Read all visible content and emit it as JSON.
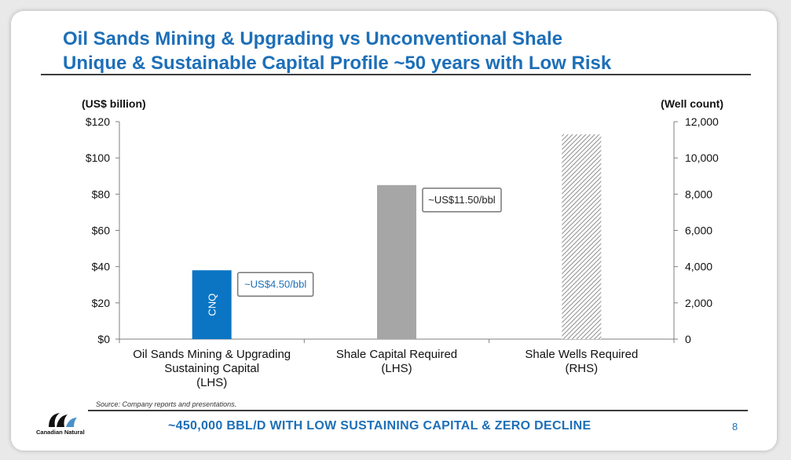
{
  "slide": {
    "title_line1": "Oil Sands Mining & Upgrading vs Unconventional Shale",
    "title_line2": "Unique & Sustainable Capital Profile ~50 years with Low Risk",
    "source": "Source: Company reports and presentations.",
    "footer": "~450,000 BBL/D WITH LOW SUSTAINING CAPITAL & ZERO DECLINE",
    "page_number": "8",
    "logo_text": "Canadian Natural"
  },
  "colors": {
    "title": "#1d6fb8",
    "cnq_bar": "#0b75c4",
    "shale_capital_bar": "#a6a6a6",
    "wells_hatch": "#8c8c8c",
    "callout_text_cnq": "#1d6fb8",
    "callout_text_shale": "#222222"
  },
  "chart_data": {
    "type": "bar",
    "left_axis": {
      "label": "(US$ billion)",
      "ylim": [
        0,
        120
      ],
      "ticks": [
        0,
        20,
        40,
        60,
        80,
        100,
        120
      ],
      "tick_labels": [
        "$0",
        "$20",
        "$40",
        "$60",
        "$80",
        "$100",
        "$120"
      ]
    },
    "right_axis": {
      "label": "(Well count)",
      "ylim": [
        0,
        12000
      ],
      "ticks": [
        0,
        2000,
        4000,
        6000,
        8000,
        10000,
        12000
      ],
      "tick_labels": [
        "0",
        "2,000",
        "4,000",
        "6,000",
        "8,000",
        "10,000",
        "12,000"
      ]
    },
    "categories": [
      [
        "Oil Sands Mining & Upgrading",
        "Sustaining Capital",
        "(LHS)"
      ],
      [
        "Shale Capital Required",
        "(LHS)"
      ],
      [
        "Shale Wells Required",
        "(RHS)"
      ]
    ],
    "bars": [
      {
        "category_index": 0,
        "axis": "left",
        "value": 38,
        "label": "CNQ",
        "callout": "~US$4.50/bbl",
        "style": "solid-blue"
      },
      {
        "category_index": 1,
        "axis": "left",
        "value": 85,
        "label": "",
        "callout": "~US$11.50/bbl",
        "style": "solid-gray"
      },
      {
        "category_index": 2,
        "axis": "right",
        "value": 11300,
        "label": "",
        "callout": "",
        "style": "hatched"
      }
    ],
    "grid": false,
    "legend": "none"
  }
}
